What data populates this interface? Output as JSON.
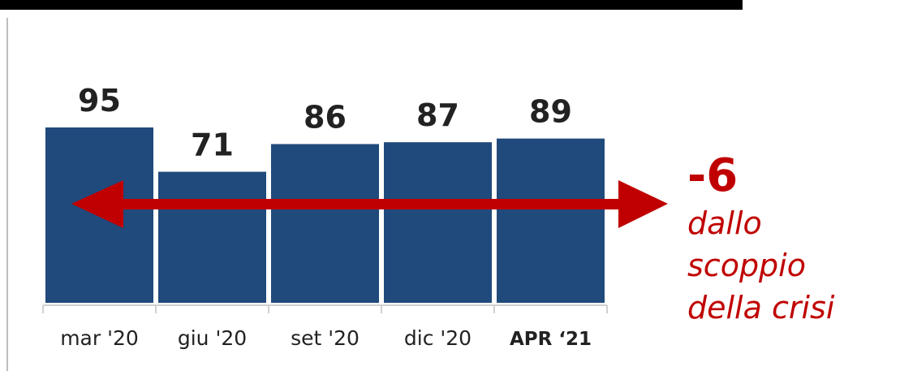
{
  "chart_data": {
    "type": "bar",
    "categories": [
      "mar '20",
      "giu '20",
      "set '20",
      "dic '20",
      "APR ‘21"
    ],
    "values": [
      95,
      71,
      86,
      87,
      89
    ],
    "title": "",
    "xlabel": "",
    "ylabel": "",
    "ylim": [
      0,
      95
    ],
    "grid": false,
    "legend": "none",
    "bar_color": "#204a7c",
    "emphasized_category": "APR ‘21",
    "annotation": {
      "delta": "-6",
      "text_lines": [
        "dallo",
        "scoppio",
        "della crisi"
      ],
      "color": "#c00000"
    }
  }
}
